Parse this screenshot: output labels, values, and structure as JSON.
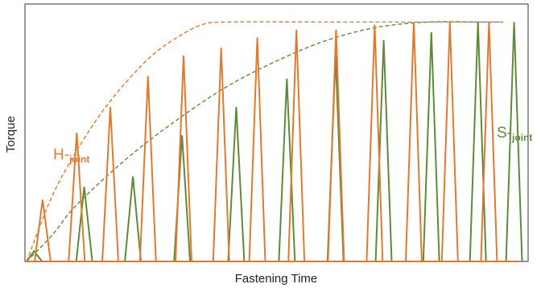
{
  "chart_data": {
    "type": "line",
    "title": "",
    "xlabel": "Fastening Time",
    "ylabel": "Torque",
    "grid": false,
    "xlim": [
      0,
      100
    ],
    "ylim": [
      0,
      100
    ],
    "series": [
      {
        "name": "H-joint",
        "label_main": "H-",
        "label_sub": "joint",
        "color": "#e07a30",
        "envelope": {
          "style": "dashed",
          "x": [
            0,
            5,
            10,
            15,
            20,
            25,
            30,
            35,
            40,
            60,
            80,
            95
          ],
          "y": [
            0,
            25,
            43,
            58,
            70,
            80,
            87,
            92,
            93,
            93,
            93,
            93
          ]
        },
        "pulses": {
          "peak_x": [
            3.2,
            10.0,
            16.7,
            24.2,
            31.3,
            38.8,
            46.0,
            53.8,
            61.7,
            69.4,
            77.2,
            84.4,
            92.2
          ],
          "peak_y": [
            24,
            50,
            60,
            72,
            80,
            83,
            87,
            90,
            90,
            92,
            93,
            93,
            93
          ],
          "half_width": 1.6
        }
      },
      {
        "name": "S-joint",
        "label_main": "S-",
        "label_sub": "joint",
        "color": "#5f8a3a",
        "envelope": {
          "style": "dashed",
          "x": [
            0,
            5,
            10,
            20,
            30,
            40,
            50,
            60,
            70,
            80,
            90,
            95
          ],
          "y": [
            0,
            10,
            22,
            40,
            55,
            68,
            78,
            86,
            91,
            93,
            93,
            93
          ]
        },
        "pulses": {
          "peak_x": [
            1.5,
            11.5,
            21.2,
            31.0,
            41.8,
            51.9,
            61.6,
            71.2,
            80.7,
            90.0,
            97.2
          ],
          "peak_y": [
            4,
            29,
            33,
            49,
            60,
            71,
            80,
            86,
            89,
            93,
            93
          ],
          "half_width": 1.6
        }
      }
    ]
  }
}
